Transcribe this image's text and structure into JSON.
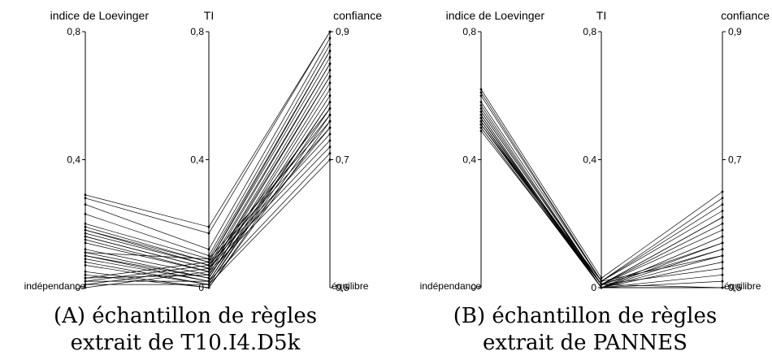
{
  "chart_data": [
    {
      "type": "parallel-coordinates",
      "caption": [
        "(A) échantillon de règles",
        "extrait de T10.I4.D5k"
      ],
      "axes": [
        {
          "title": "indice de Loevinger",
          "range": [
            0,
            0.8
          ],
          "ticks": [
            {
              "value": 0.8,
              "label": "0,8"
            },
            {
              "value": 0.4,
              "label": "0,4"
            },
            {
              "value": 0,
              "label": "0"
            }
          ],
          "bottom_label": "indépendance"
        },
        {
          "title": "TI",
          "range": [
            0,
            0.8
          ],
          "ticks": [
            {
              "value": 0.8,
              "label": "0,8"
            },
            {
              "value": 0.4,
              "label": "0,4"
            },
            {
              "value": 0,
              "label": "0"
            }
          ],
          "bottom_label": ""
        },
        {
          "title": "confiance",
          "range": [
            0.5,
            0.9
          ],
          "ticks": [
            {
              "value": 0.9,
              "label": "0,9"
            },
            {
              "value": 0.7,
              "label": "0,7"
            },
            {
              "value": 0.5,
              "label": "0,5"
            }
          ],
          "bottom_label": "équilibre"
        }
      ],
      "lines": [
        [
          0.29,
          0.19,
          0.9
        ],
        [
          0.28,
          0.17,
          0.9
        ],
        [
          0.26,
          0.12,
          0.89
        ],
        [
          0.23,
          0.1,
          0.88
        ],
        [
          0.2,
          0.09,
          0.87
        ],
        [
          0.19,
          0.08,
          0.87
        ],
        [
          0.18,
          0.08,
          0.86
        ],
        [
          0.17,
          0.07,
          0.85
        ],
        [
          0.16,
          0.06,
          0.85
        ],
        [
          0.15,
          0.05,
          0.84
        ],
        [
          0.14,
          0.05,
          0.83
        ],
        [
          0.12,
          0.04,
          0.83
        ],
        [
          0.11,
          0.03,
          0.82
        ],
        [
          0.1,
          0.03,
          0.81
        ],
        [
          0.1,
          0.02,
          0.8
        ],
        [
          0.09,
          0.02,
          0.79
        ],
        [
          0.08,
          0.01,
          0.79
        ],
        [
          0.07,
          0.01,
          0.78
        ],
        [
          0.05,
          0.0,
          0.77
        ],
        [
          0.04,
          0.0,
          0.76
        ],
        [
          0.03,
          0.08,
          0.75
        ],
        [
          0.02,
          0.07,
          0.74
        ],
        [
          0.01,
          0.06,
          0.73
        ],
        [
          0.0,
          0.05,
          0.72
        ],
        [
          0.18,
          0.07,
          0.78
        ],
        [
          0.16,
          0.06,
          0.77
        ],
        [
          0.11,
          0.09,
          0.76
        ],
        [
          0.03,
          0.04,
          0.75
        ],
        [
          0.02,
          0.02,
          0.71
        ],
        [
          0.01,
          0.01,
          0.7
        ]
      ]
    },
    {
      "type": "parallel-coordinates",
      "caption": [
        "(B) échantillon de règles",
        "extrait de PANNES"
      ],
      "axes": [
        {
          "title": "indice de Loevinger",
          "range": [
            0,
            0.8
          ],
          "ticks": [
            {
              "value": 0.8,
              "label": "0,8"
            },
            {
              "value": 0.4,
              "label": "0,4"
            },
            {
              "value": 0,
              "label": "0"
            }
          ],
          "bottom_label": "indépendance"
        },
        {
          "title": "TI",
          "range": [
            0,
            0.8
          ],
          "ticks": [
            {
              "value": 0.8,
              "label": "0,8"
            },
            {
              "value": 0.4,
              "label": "0,4"
            },
            {
              "value": 0,
              "label": "0"
            }
          ],
          "bottom_label": ""
        },
        {
          "title": "confiance",
          "range": [
            0.5,
            0.9
          ],
          "ticks": [
            {
              "value": 0.9,
              "label": "0,9"
            },
            {
              "value": 0.7,
              "label": "0,7"
            },
            {
              "value": 0.5,
              "label": "0,5"
            }
          ],
          "bottom_label": "équilibre"
        }
      ],
      "lines": [
        [
          0.62,
          0.03,
          0.65
        ],
        [
          0.61,
          0.02,
          0.64
        ],
        [
          0.6,
          0.02,
          0.63
        ],
        [
          0.58,
          0.02,
          0.62
        ],
        [
          0.57,
          0.01,
          0.61
        ],
        [
          0.56,
          0.01,
          0.61
        ],
        [
          0.55,
          0.01,
          0.6
        ],
        [
          0.55,
          0.01,
          0.59
        ],
        [
          0.54,
          0.0,
          0.58
        ],
        [
          0.53,
          0.0,
          0.57
        ],
        [
          0.53,
          0.01,
          0.57
        ],
        [
          0.52,
          0.0,
          0.56
        ],
        [
          0.52,
          0.01,
          0.56
        ],
        [
          0.51,
          0.0,
          0.55
        ],
        [
          0.51,
          0.02,
          0.55
        ],
        [
          0.5,
          0.0,
          0.54
        ],
        [
          0.49,
          0.01,
          0.53
        ],
        [
          0.54,
          0.0,
          0.52
        ],
        [
          0.53,
          0.0,
          0.51
        ],
        [
          0.52,
          0.0,
          0.5
        ],
        [
          0.51,
          0.01,
          0.5
        ],
        [
          0.5,
          0.0,
          0.5
        ]
      ]
    }
  ]
}
